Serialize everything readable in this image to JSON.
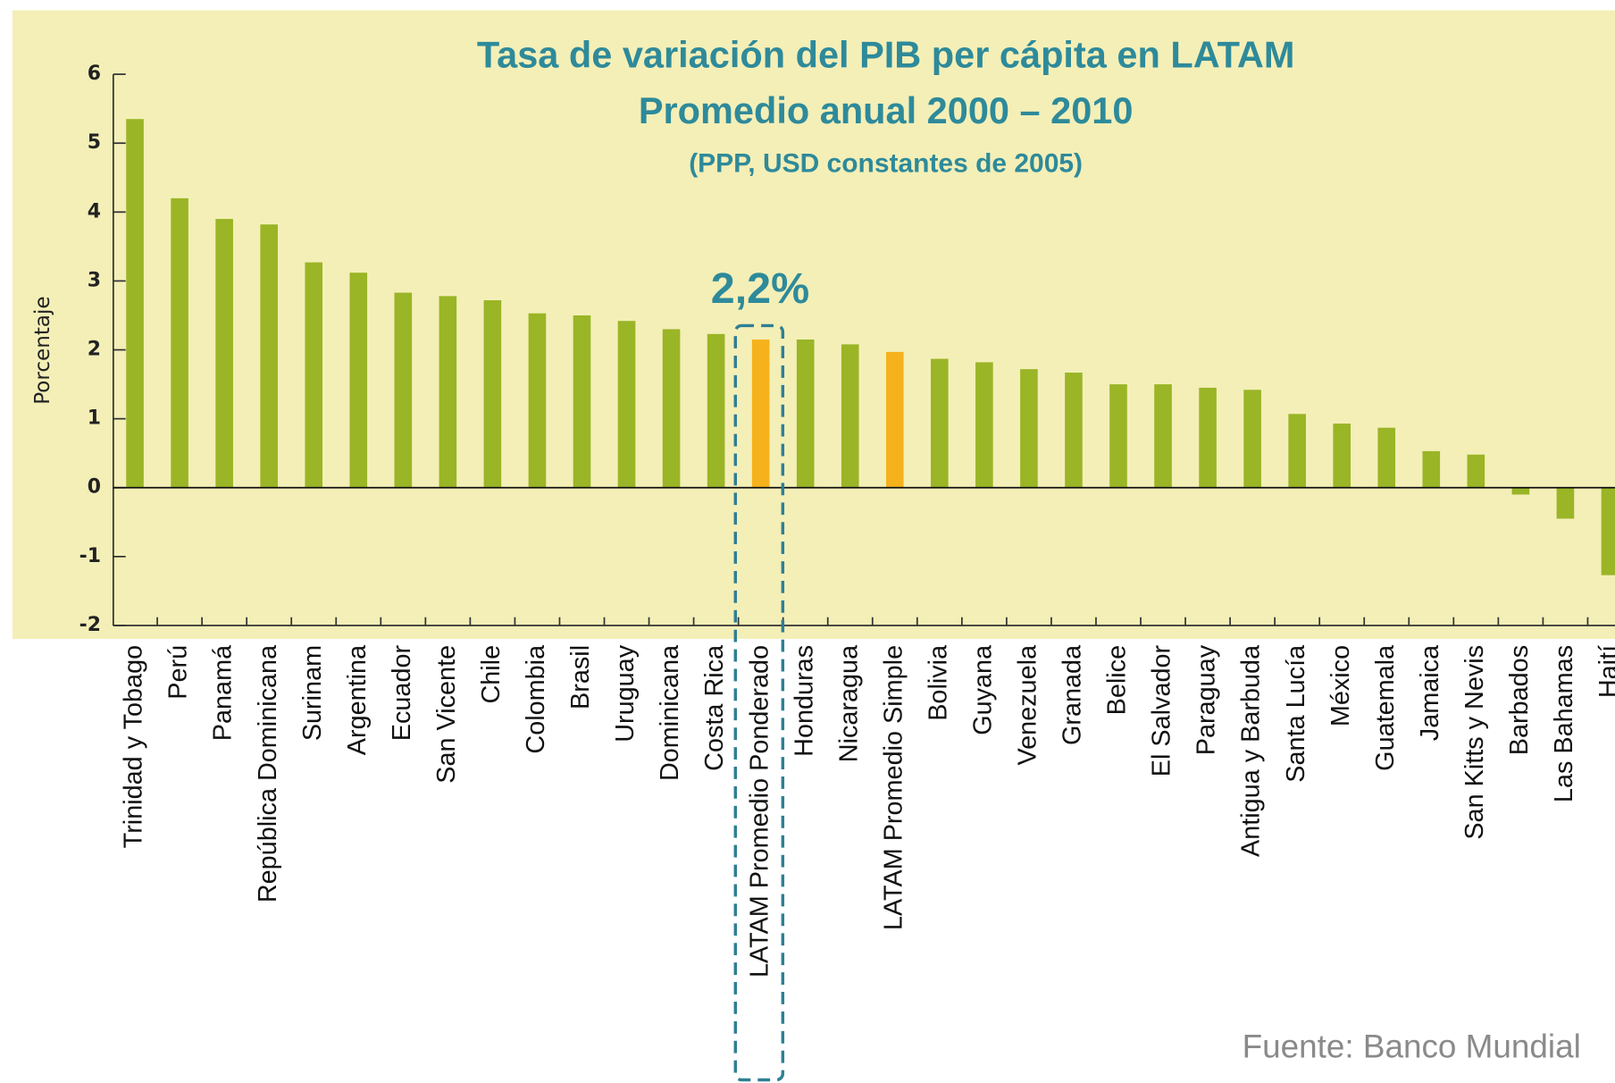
{
  "chart_data": {
    "type": "bar",
    "title": "Tasa de variación del PIB per cápita en LATAM",
    "subtitle": "Promedio anual 2000 – 2010",
    "note": "(PPP, USD constantes de 2005)",
    "y_label": "Porcentaje",
    "annotation": "2,2%",
    "source": "Fuente: Banco Mundial",
    "categories": [
      "Trinidad y Tobago",
      "Perú",
      "Panamá",
      "República Dominicana",
      "Surinam",
      "Argentina",
      "Ecuador",
      "San Vicente",
      "Chile",
      "Colombia",
      "Brasil",
      "Uruguay",
      "Dominicana",
      "Costa Rica",
      "LATAM Promedio Ponderado",
      "Honduras",
      "Nicaragua",
      "LATAM Promedio Simple",
      "Bolivia",
      "Guyana",
      "Venezuela",
      "Granada",
      "Belice",
      "El Salvador",
      "Paraguay",
      "Antigua y Barbuda",
      "Santa Lucía",
      "México",
      "Guatemala",
      "Jamaica",
      "San Kitts y Nevis",
      "Barbados",
      "Las Bahamas",
      "Haití"
    ],
    "values": [
      5.35,
      4.2,
      3.9,
      3.82,
      3.27,
      3.12,
      2.83,
      2.78,
      2.72,
      2.53,
      2.5,
      2.42,
      2.3,
      2.23,
      2.15,
      2.15,
      2.08,
      1.97,
      1.87,
      1.82,
      1.72,
      1.67,
      1.5,
      1.5,
      1.45,
      1.42,
      1.07,
      0.93,
      0.87,
      0.53,
      0.48,
      -0.1,
      -0.45,
      -1.27
    ],
    "colors": [
      "#9ab526",
      "#9ab526",
      "#9ab526",
      "#9ab526",
      "#9ab526",
      "#9ab526",
      "#9ab526",
      "#9ab526",
      "#9ab526",
      "#9ab526",
      "#9ab526",
      "#9ab526",
      "#9ab526",
      "#9ab526",
      "#f5b21c",
      "#9ab526",
      "#9ab526",
      "#f5b21c",
      "#9ab526",
      "#9ab526",
      "#9ab526",
      "#9ab526",
      "#9ab526",
      "#9ab526",
      "#9ab526",
      "#9ab526",
      "#9ab526",
      "#9ab526",
      "#9ab526",
      "#9ab526",
      "#9ab526",
      "#9ab526",
      "#9ab526",
      "#9ab526"
    ],
    "ylim": [
      -2,
      6
    ],
    "yticks": [
      -2,
      -1,
      0,
      1,
      2,
      3,
      4,
      5,
      6
    ]
  }
}
